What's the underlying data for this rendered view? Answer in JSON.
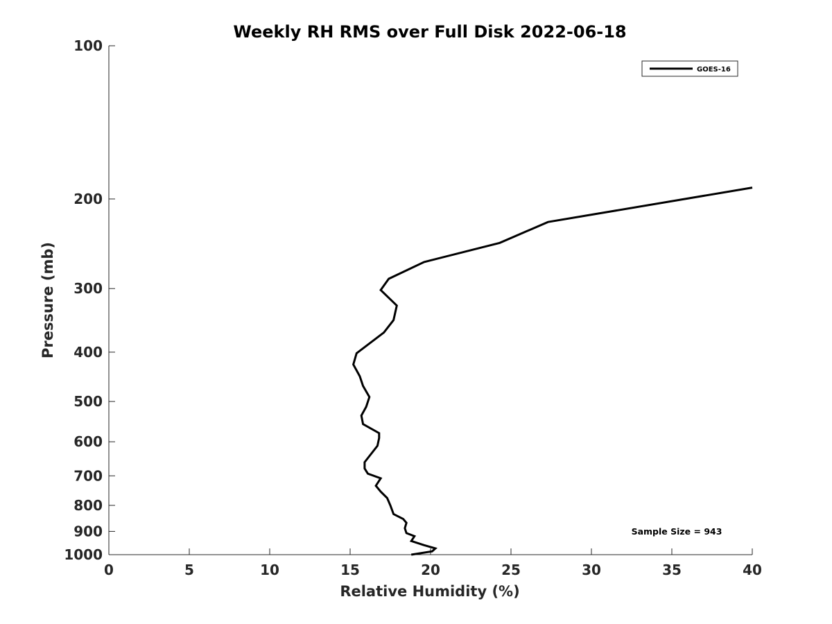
{
  "chart_data": {
    "type": "line",
    "title": "Weekly RH RMS over Full Disk 2022-06-18",
    "xlabel": "Relative Humidity (%)",
    "ylabel": "Pressure (mb)",
    "xlim": [
      0,
      40
    ],
    "ylim": [
      100,
      1000
    ],
    "yscale": "log",
    "y_reversed": true,
    "xticks": [
      0,
      5,
      10,
      15,
      20,
      25,
      30,
      35,
      40
    ],
    "yticks": [
      100,
      200,
      300,
      400,
      500,
      600,
      700,
      800,
      900,
      1000
    ],
    "grid": false,
    "legend_position": "top-right",
    "annotation": "Sample Size = 943",
    "series": [
      {
        "name": "GOES-16",
        "color": "#000000",
        "points": [
          {
            "x": 40.0,
            "y": 190
          },
          {
            "x": 27.3,
            "y": 222
          },
          {
            "x": 24.3,
            "y": 244
          },
          {
            "x": 19.6,
            "y": 266
          },
          {
            "x": 17.4,
            "y": 287
          },
          {
            "x": 16.9,
            "y": 302
          },
          {
            "x": 17.9,
            "y": 324
          },
          {
            "x": 17.7,
            "y": 346
          },
          {
            "x": 17.1,
            "y": 366
          },
          {
            "x": 15.4,
            "y": 402
          },
          {
            "x": 15.2,
            "y": 423
          },
          {
            "x": 15.6,
            "y": 446
          },
          {
            "x": 15.8,
            "y": 466
          },
          {
            "x": 16.2,
            "y": 490
          },
          {
            "x": 16.0,
            "y": 512
          },
          {
            "x": 15.7,
            "y": 533
          },
          {
            "x": 15.8,
            "y": 554
          },
          {
            "x": 16.8,
            "y": 577
          },
          {
            "x": 16.8,
            "y": 590
          },
          {
            "x": 16.7,
            "y": 611
          },
          {
            "x": 15.9,
            "y": 658
          },
          {
            "x": 15.9,
            "y": 677
          },
          {
            "x": 16.1,
            "y": 693
          },
          {
            "x": 16.9,
            "y": 708
          },
          {
            "x": 16.6,
            "y": 732
          },
          {
            "x": 16.9,
            "y": 752
          },
          {
            "x": 17.3,
            "y": 774
          },
          {
            "x": 17.5,
            "y": 800
          },
          {
            "x": 17.7,
            "y": 832
          },
          {
            "x": 18.3,
            "y": 851
          },
          {
            "x": 18.5,
            "y": 866
          },
          {
            "x": 18.4,
            "y": 887
          },
          {
            "x": 18.5,
            "y": 907
          },
          {
            "x": 19.0,
            "y": 920
          },
          {
            "x": 18.8,
            "y": 940
          },
          {
            "x": 19.6,
            "y": 958
          },
          {
            "x": 20.3,
            "y": 972
          },
          {
            "x": 20.1,
            "y": 985
          },
          {
            "x": 18.8,
            "y": 1000
          }
        ]
      }
    ]
  }
}
